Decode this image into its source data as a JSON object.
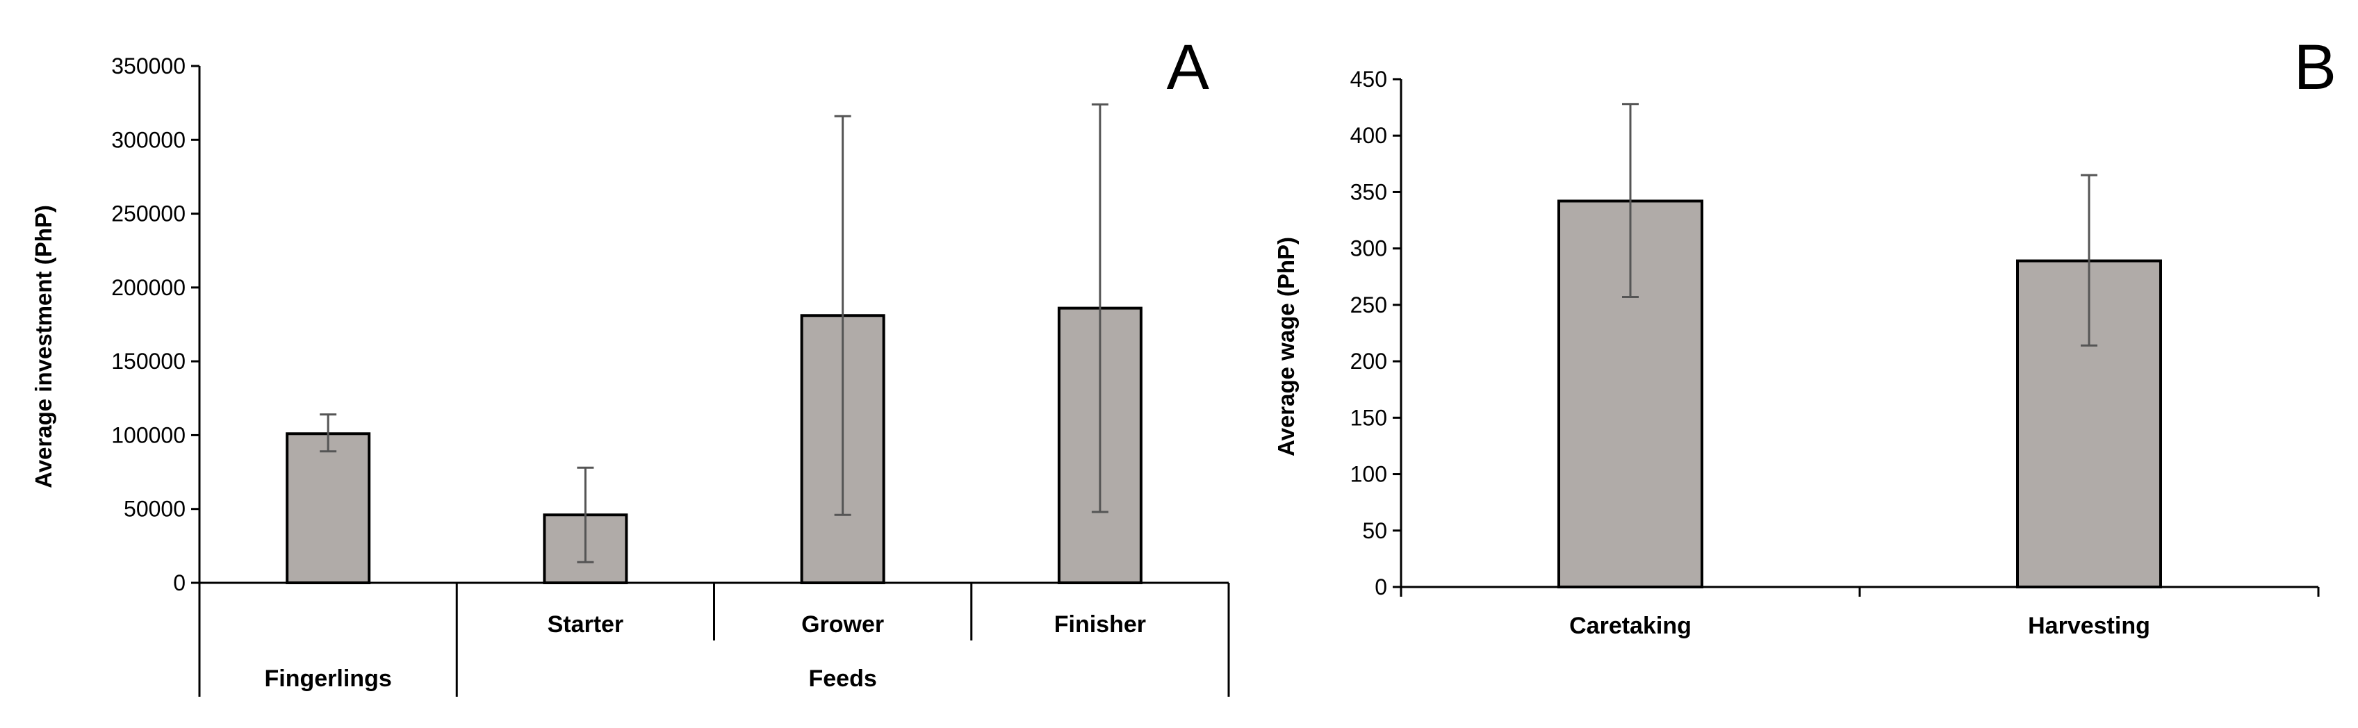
{
  "colors": {
    "bar_fill": "#b0aba8",
    "bar_stroke": "#000000",
    "error_bar": "#555555"
  },
  "chart_data": [
    {
      "type": "bar",
      "panel_label": "A",
      "ylabel": "Average investment (PhP)",
      "ylim": [
        0,
        350000
      ],
      "yticks": [
        0,
        50000,
        100000,
        150000,
        200000,
        250000,
        300000,
        350000
      ],
      "categories": [
        "Fingerlings",
        "Starter",
        "Grower",
        "Finisher"
      ],
      "category_groups": [
        {
          "label": "Fingerlings",
          "members": [
            "Fingerlings"
          ]
        },
        {
          "label": "Feeds",
          "members": [
            "Starter",
            "Grower",
            "Finisher"
          ]
        }
      ],
      "values": [
        101000,
        46000,
        181000,
        186000
      ],
      "error_low": [
        89000,
        14000,
        46000,
        48000
      ],
      "error_high": [
        114000,
        78000,
        316000,
        324000
      ],
      "grid": false,
      "legend": false
    },
    {
      "type": "bar",
      "panel_label": "B",
      "ylabel": "Average wage (PhP)",
      "ylim": [
        0,
        450
      ],
      "yticks": [
        0,
        50,
        100,
        150,
        200,
        250,
        300,
        350,
        400,
        450
      ],
      "categories": [
        "Caretaking",
        "Harvesting"
      ],
      "values": [
        342,
        289
      ],
      "error_low": [
        257,
        214
      ],
      "error_high": [
        428,
        365
      ],
      "grid": false,
      "legend": false
    }
  ]
}
